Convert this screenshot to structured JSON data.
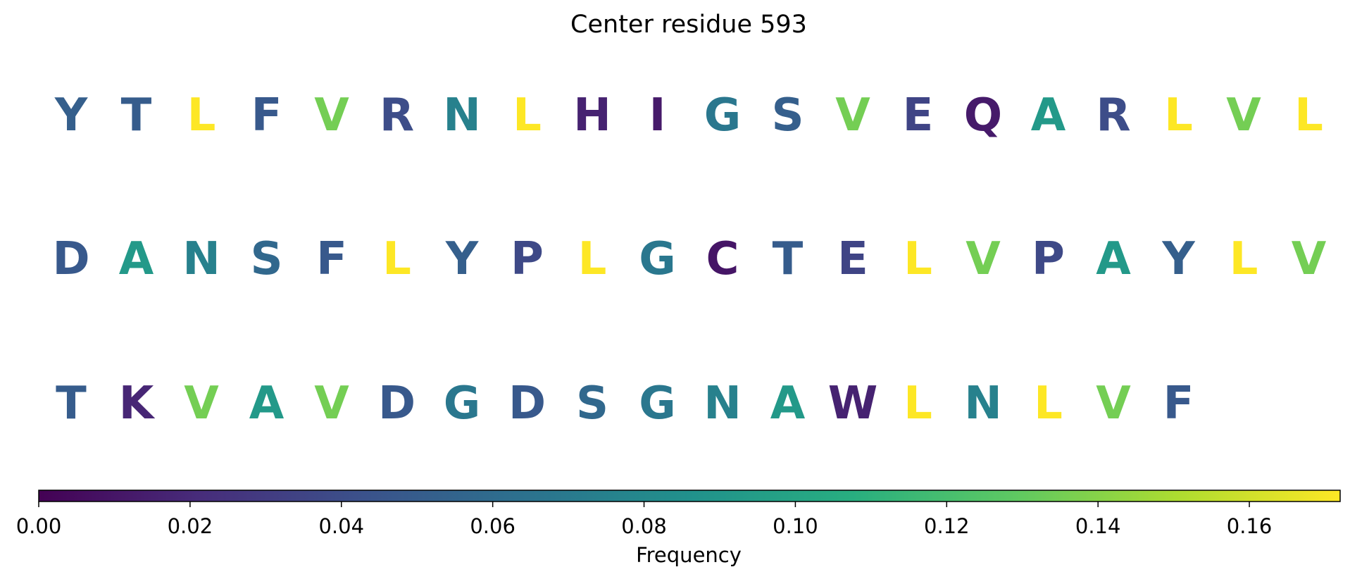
{
  "chart_data": {
    "type": "heatmap",
    "title": "Center residue 593",
    "colormap": "viridis",
    "rows": [
      {
        "residues": [
          "Y",
          "T",
          "L",
          "F",
          "V",
          "R",
          "N",
          "L",
          "H",
          "I",
          "G",
          "S",
          "V",
          "E",
          "Q",
          "A",
          "R",
          "L",
          "V",
          "L"
        ],
        "values": [
          0.052,
          0.05,
          0.172,
          0.048,
          0.135,
          0.04,
          0.075,
          0.172,
          0.016,
          0.012,
          0.068,
          0.052,
          0.135,
          0.035,
          0.012,
          0.092,
          0.04,
          0.172,
          0.135,
          0.172
        ]
      },
      {
        "residues": [
          "D",
          "A",
          "N",
          "S",
          "F",
          "L",
          "Y",
          "P",
          "L",
          "G",
          "C",
          "T",
          "E",
          "L",
          "V",
          "P",
          "A",
          "Y",
          "L",
          "V"
        ],
        "values": [
          0.048,
          0.092,
          0.075,
          0.058,
          0.048,
          0.172,
          0.052,
          0.038,
          0.172,
          0.068,
          0.01,
          0.05,
          0.035,
          0.172,
          0.135,
          0.038,
          0.092,
          0.052,
          0.172,
          0.135
        ]
      },
      {
        "residues": [
          "T",
          "K",
          "V",
          "A",
          "V",
          "D",
          "G",
          "D",
          "S",
          "G",
          "N",
          "A",
          "W",
          "L",
          "N",
          "L",
          "V",
          "F"
        ],
        "values": [
          0.05,
          0.018,
          0.135,
          0.092,
          0.135,
          0.048,
          0.068,
          0.048,
          0.058,
          0.068,
          0.075,
          0.092,
          0.016,
          0.172,
          0.075,
          0.172,
          0.135,
          0.048
        ]
      }
    ],
    "colorbar": {
      "label": "Frequency",
      "min": 0.0,
      "max": 0.172,
      "ticks": [
        "0.00",
        "0.02",
        "0.04",
        "0.06",
        "0.08",
        "0.10",
        "0.12",
        "0.14",
        "0.16"
      ]
    }
  }
}
